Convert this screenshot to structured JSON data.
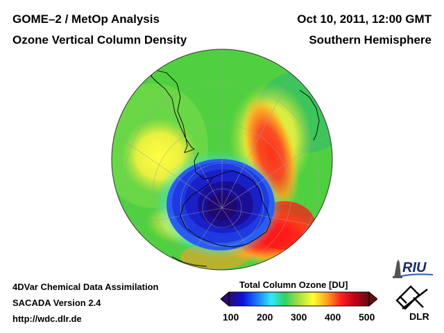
{
  "header": {
    "title_line1": "GOME–2 / MetOp Analysis",
    "title_line2": "Ozone Vertical Column Density",
    "date": "Oct 10, 2011, 12:00 GMT",
    "region": "Southern Hemisphere"
  },
  "footer": {
    "line1": "4DVar Chemical Data Assimilation",
    "line2": "SACADA Version 2.4",
    "line3": "http://wdc.dlr.de"
  },
  "colorbar": {
    "title": "Total Column Ozone [DU]",
    "ticks": [
      "100",
      "200",
      "300",
      "400",
      "500"
    ],
    "range": [
      100,
      500
    ],
    "colors": [
      "#2a0a6e",
      "#0a10e0",
      "#1a78ff",
      "#30e8ff",
      "#30d060",
      "#a8e040",
      "#ffff30",
      "#ffa020",
      "#ff2020",
      "#c00018",
      "#601010"
    ]
  },
  "logos": {
    "riu": "RIU",
    "dlr": "DLR"
  },
  "map": {
    "projection": "orthographic south polar",
    "features": [
      "ozone-hole",
      "high-ozone-collar",
      "continent-outlines",
      "graticule"
    ]
  }
}
